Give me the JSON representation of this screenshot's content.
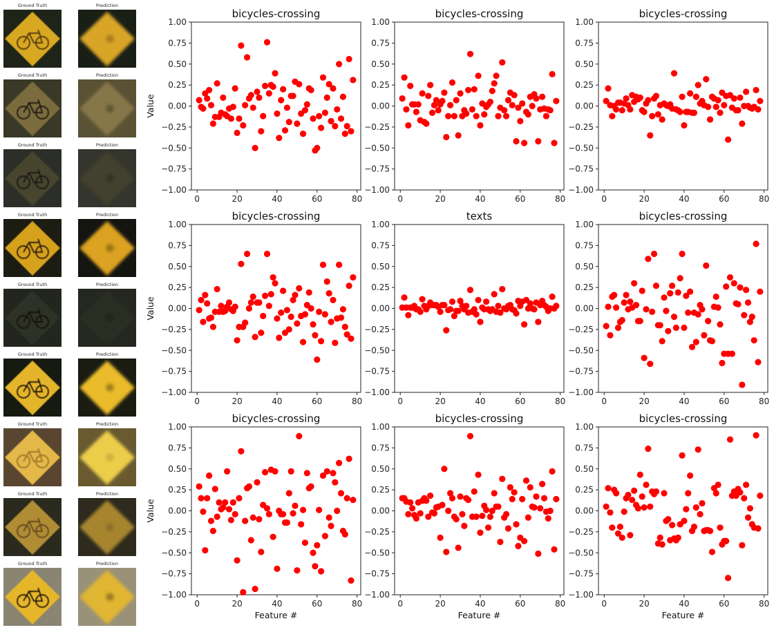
{
  "thumbnails": {
    "gt_label": "Ground Truth",
    "pred_label": "Prediction",
    "rows": [
      {
        "bg": "#1e2418",
        "sign": "#d9a822",
        "pred_bg": "#1a1f16",
        "pred_sign": "#d8a526",
        "symbol": "#5a3a10"
      },
      {
        "bg": "#3a3826",
        "sign": "#7a6c3c",
        "pred_bg": "#5a5234",
        "pred_sign": "#86774a",
        "symbol": "#1c1a12"
      },
      {
        "bg": "#2c2e28",
        "sign": "#46442e",
        "pred_bg": "#34352c",
        "pred_sign": "#423f2e",
        "symbol": "#1c1c16"
      },
      {
        "bg": "#1c1c12",
        "sign": "#d6a11c",
        "pred_bg": "#141410",
        "pred_sign": "#dca221",
        "symbol": "#2a1c08"
      },
      {
        "bg": "#22261e",
        "sign": "#2e3226",
        "pred_bg": "#252820",
        "pred_sign": "#2c2d24",
        "symbol": "#15170f"
      },
      {
        "bg": "#161a10",
        "sign": "#e4b42a",
        "pred_bg": "#1a1c12",
        "pred_sign": "#eabb2c",
        "symbol": "#1a1408"
      },
      {
        "bg": "#5a4630",
        "sign": "#e4b84a",
        "pred_bg": "#6a5a30",
        "pred_sign": "#eccd4a",
        "symbol": "#a47e2a"
      },
      {
        "bg": "#2a2a1e",
        "sign": "#b08c34",
        "pred_bg": "#2e2a1e",
        "pred_sign": "#a6852e",
        "symbol": "#6a4e20"
      },
      {
        "bg": "#8a8472",
        "sign": "#e6b62c",
        "pred_bg": "#9a9278",
        "pred_sign": "#e0b630",
        "symbol": "#1e1608"
      }
    ]
  },
  "chart_data": [
    {
      "type": "scatter",
      "title": "bicycles-crossing",
      "xlabel": "",
      "ylabel": "Value",
      "xlim": [
        -2.85,
        81.85
      ],
      "ylim": [
        -1,
        1
      ],
      "xticks": [
        0,
        20,
        40,
        60,
        80
      ],
      "yticks": [
        -1.0,
        -0.75,
        -0.5,
        -0.25,
        0.0,
        0.25,
        0.5,
        0.75,
        1.0
      ],
      "color": "#ff0000",
      "grid": false,
      "y": [
        0.07,
        -0.01,
        -0.03,
        0.15,
        0.09,
        0.19,
        0.01,
        -0.21,
        -0.13,
        0.27,
        -0.13,
        -0.08,
        0.1,
        -0.1,
        -0.12,
        -0.03,
        -0.15,
        -0.01,
        0.21,
        -0.32,
        -0.15,
        0.72,
        -0.23,
        0.01,
        0.58,
        0.09,
        0.13,
        -0.02,
        -0.5,
        0.17,
        0.1,
        -0.3,
        -0.12,
        0.24,
        0.76,
        0.15,
        0.25,
        0.23,
        0.39,
        -0.09,
        -0.38,
        0.07,
        0.2,
        -0.29,
        -0.02,
        -0.19,
        0.12,
        0.12,
        0.29,
        -0.21,
        0.26,
        -0.09,
        -0.33,
        -0.05,
        0.02,
        0.21,
        0.19,
        -0.15,
        -0.53,
        -0.5,
        -0.12,
        -0.26,
        0.34,
        -0.08,
        0.1,
        0.26,
        -0.18,
        0.21,
        -0.24,
        -0.04,
        0.5,
        -0.15,
        0.11,
        -0.33,
        -0.24,
        0.56,
        -0.3,
        0.31
      ]
    },
    {
      "type": "scatter",
      "title": "bicycles-crossing",
      "xlabel": "",
      "ylabel": "",
      "xlim": [
        -2.85,
        81.85
      ],
      "ylim": [
        -1,
        1
      ],
      "xticks": [
        0,
        20,
        40,
        60,
        80
      ],
      "yticks": [
        -1.0,
        -0.75,
        -0.5,
        -0.25,
        0.0,
        0.25,
        0.5,
        0.75,
        1.0
      ],
      "color": "#ff0000",
      "grid": false,
      "y": [
        0.09,
        0.34,
        -0.04,
        -0.23,
        0.24,
        0.02,
        0.02,
        -0.07,
        0.02,
        -0.17,
        0.15,
        -0.19,
        -0.21,
        0.12,
        0.25,
        -0.08,
        0.01,
        0.07,
        -0.05,
        0.02,
        0.06,
        0.16,
        -0.37,
        -0.12,
        0.01,
        0.28,
        -0.12,
        0.07,
        -0.35,
        0.15,
        -0.12,
        -0.05,
        -0.09,
        0.19,
        0.62,
        -0.04,
        0.2,
        -0.12,
        0.36,
        -0.23,
        0.03,
        -0.1,
        -0.01,
        0.02,
        0.05,
        0.18,
        0.27,
        0.36,
        -0.12,
        -0.02,
        0.52,
        -0.05,
        -0.12,
        0.07,
        0.16,
        0.01,
        0.13,
        -0.42,
        -0.02,
        -0.18,
        0.03,
        -0.44,
        -0.07,
        -0.1,
        0.11,
        0.0,
        0.14,
        0.09,
        -0.42,
        -0.04,
        0.11,
        -0.03,
        -0.12,
        -0.04,
        -0.05,
        0.38,
        -0.44,
        0.06
      ]
    },
    {
      "type": "scatter",
      "title": "bicycles-crossing",
      "xlabel": "",
      "ylabel": "",
      "xlim": [
        -2.85,
        81.85
      ],
      "ylim": [
        -1,
        1
      ],
      "xticks": [
        0,
        20,
        40,
        60,
        80
      ],
      "yticks": [
        -1.0,
        -0.75,
        -0.5,
        -0.25,
        0.0,
        0.25,
        0.5,
        0.75,
        1.0
      ],
      "color": "#ff0000",
      "grid": false,
      "y": [
        0.06,
        0.21,
        0.01,
        -0.12,
        0.0,
        -0.04,
        0.04,
        0.04,
        -0.05,
        0.03,
        0.09,
        0.01,
        -0.04,
        0.13,
        0.05,
        0.11,
        0.08,
        0.1,
        -0.05,
        -0.07,
        0.03,
        0.07,
        -0.35,
        -0.12,
        0.09,
        0.12,
        -0.1,
        0.01,
        -0.16,
        0.03,
        0.01,
        0.0,
        0.02,
        -0.03,
        0.39,
        -0.04,
        -0.05,
        -0.07,
        0.11,
        -0.23,
        -0.07,
        -0.07,
        0.15,
        -0.08,
        -0.08,
        0.11,
        0.25,
        0.03,
        0.06,
        0.01,
        0.32,
        -0.01,
        -0.16,
        0.11,
        0.09,
        -0.01,
        0.07,
        -0.08,
        0.16,
        0.01,
        0.12,
        -0.4,
        0.13,
        -0.02,
        0.09,
        -0.05,
        -0.05,
        0.1,
        -0.21,
        0.0,
        0.17,
        0.0,
        -0.02,
        -0.03,
        -0.01,
        0.19,
        -0.04,
        0.06
      ]
    },
    {
      "type": "scatter",
      "title": "bicycles-crossing",
      "xlabel": "",
      "ylabel": "Value",
      "xlim": [
        -2.85,
        81.85
      ],
      "ylim": [
        -1,
        1
      ],
      "xticks": [
        0,
        20,
        40,
        60,
        80
      ],
      "yticks": [
        -1.0,
        -0.75,
        -0.5,
        -0.25,
        0.0,
        0.25,
        0.5,
        0.75,
        1.0
      ],
      "color": "#ff0000",
      "grid": false,
      "y": [
        -0.02,
        0.1,
        -0.16,
        0.16,
        0.06,
        -0.12,
        -0.11,
        -0.22,
        -0.04,
        0.23,
        -0.04,
        0.03,
        -0.04,
        -0.03,
        0.02,
        0.07,
        -0.01,
        -0.03,
        0.02,
        -0.38,
        -0.22,
        0.53,
        -0.22,
        -0.17,
        0.65,
        0.0,
        0.07,
        0.14,
        -0.34,
        0.07,
        0.07,
        -0.29,
        -0.09,
        0.15,
        0.65,
        0.03,
        0.17,
        0.37,
        0.3,
        -0.12,
        -0.35,
        -0.05,
        0.21,
        -0.29,
        -0.02,
        -0.25,
        -0.1,
        0.1,
        0.16,
        -0.18,
        0.24,
        -0.09,
        -0.4,
        -0.07,
        0.04,
        0.19,
        0.0,
        -0.19,
        -0.32,
        -0.61,
        -0.04,
        -0.39,
        0.52,
        -0.07,
        0.32,
        0.18,
        -0.16,
        0.1,
        -0.41,
        -0.12,
        0.52,
        -0.11,
        -0.01,
        -0.22,
        -0.31,
        0.27,
        -0.36,
        0.37
      ]
    },
    {
      "type": "scatter",
      "title": "texts",
      "xlabel": "",
      "ylabel": "",
      "xlim": [
        -2.85,
        81.85
      ],
      "ylim": [
        -1,
        1
      ],
      "xticks": [
        0,
        20,
        40,
        60,
        80
      ],
      "yticks": [
        -1.0,
        -0.75,
        -0.5,
        -0.25,
        0.0,
        0.25,
        0.5,
        0.75,
        1.0
      ],
      "color": "#ff0000",
      "grid": false,
      "y": [
        0.01,
        0.13,
        0.01,
        -0.08,
        0.01,
        0.01,
        0.03,
        -0.01,
        -0.01,
        -0.04,
        0.11,
        0.03,
        -0.01,
        0.03,
        0.07,
        0.04,
        0.04,
        0.04,
        0.02,
        -0.04,
        0.04,
        0.04,
        -0.26,
        -0.02,
        -0.01,
        0.08,
        -0.09,
        -0.03,
        -0.03,
        0.09,
        0.03,
        -0.01,
        0.03,
        -0.05,
        0.22,
        -0.04,
        -0.01,
        -0.07,
        0.1,
        -0.16,
        0.01,
        -0.01,
        0.08,
        -0.01,
        -0.03,
        -0.01,
        0.17,
        -0.04,
        0.03,
        -0.05,
        0.23,
        0.0,
        -0.01,
        0.03,
        0.04,
        -0.01,
        -0.02,
        -0.06,
        0.09,
        0.03,
        0.08,
        -0.19,
        0.1,
        0.0,
        0.06,
        0.0,
        -0.01,
        0.07,
        -0.16,
        0.04,
        0.09,
        0.04,
        0.02,
        -0.03,
        0.0,
        0.14,
        0.0,
        0.03
      ]
    },
    {
      "type": "scatter",
      "title": "bicycles-crossing",
      "xlabel": "",
      "ylabel": "",
      "xlim": [
        -2.85,
        81.85
      ],
      "ylim": [
        -1,
        1
      ],
      "xticks": [
        0,
        20,
        40,
        60,
        80
      ],
      "yticks": [
        -1.0,
        -0.75,
        -0.5,
        -0.25,
        0.0,
        0.25,
        0.5,
        0.75,
        1.0
      ],
      "color": "#ff0000",
      "grid": false,
      "y": [
        -0.21,
        0.02,
        -0.32,
        0.14,
        0.16,
        0.01,
        -0.23,
        -0.16,
        -0.14,
        0.07,
        0.16,
        -0.01,
        0.08,
        0.01,
        0.3,
        0.04,
        -0.15,
        -0.15,
        0.21,
        -0.59,
        -0.01,
        0.59,
        -0.66,
        -0.04,
        0.65,
        0.27,
        -0.2,
        -0.2,
        -0.39,
        0.13,
        -0.03,
        -0.27,
        0.18,
        0.27,
        -0.1,
        -0.23,
        0.19,
        0.36,
        0.65,
        -0.23,
        0.15,
        -0.05,
        0.2,
        -0.46,
        -0.05,
        -0.4,
        -0.07,
        0.04,
        -0.01,
        -0.32,
        0.51,
        -0.15,
        -0.38,
        -0.39,
        0.02,
        0.14,
        0.01,
        -0.19,
        -0.65,
        -0.54,
        0.26,
        -0.54,
        0.37,
        -0.54,
        0.3,
        0.06,
        0.05,
        0.25,
        -0.91,
        -0.08,
        0.22,
        0.07,
        -0.16,
        -0.1,
        -0.38,
        0.77,
        -0.64,
        0.2
      ]
    },
    {
      "type": "scatter",
      "title": "bicycles-crossing",
      "xlabel": "Feature #",
      "ylabel": "Value",
      "xlim": [
        -2.85,
        81.85
      ],
      "ylim": [
        -1,
        1
      ],
      "xticks": [
        0,
        20,
        40,
        60,
        80
      ],
      "yticks": [
        -1.0,
        -0.75,
        -0.5,
        -0.25,
        0.0,
        0.25,
        0.5,
        0.75,
        1.0
      ],
      "color": "#ff0000",
      "grid": false,
      "y": [
        0.29,
        0.15,
        -0.01,
        -0.47,
        0.15,
        0.42,
        -0.12,
        -0.24,
        0.26,
        -0.07,
        0.1,
        0.02,
        0.04,
        0.1,
        0.47,
        0.02,
        -0.11,
        0.1,
        -0.04,
        -0.59,
        0.15,
        0.71,
        -0.97,
        -0.12,
        0.27,
        0.29,
        -0.35,
        -0.08,
        -0.93,
        0.34,
        -0.1,
        -0.49,
        0.07,
        0.46,
        0.03,
        -0.04,
        0.49,
        -0.31,
        0.47,
        -0.69,
        0.0,
        -0.04,
        -0.04,
        -0.14,
        -0.14,
        0.21,
        0.47,
        -0.03,
        0.06,
        -0.71,
        0.89,
        -0.16,
        0.01,
        -0.38,
        0.45,
        0.27,
        0.29,
        -0.5,
        -0.66,
        -0.41,
        0.01,
        -0.72,
        0.42,
        -0.3,
        0.47,
        -0.08,
        -0.18,
        0.45,
        0.34,
        0.0,
        0.57,
        0.21,
        -0.24,
        -0.28,
        0.15,
        0.62,
        -0.83,
        0.13
      ]
    },
    {
      "type": "scatter",
      "title": "bicycles-crossing",
      "xlabel": "Feature #",
      "ylabel": "",
      "xlim": [
        -2.85,
        81.85
      ],
      "ylim": [
        -1,
        1
      ],
      "xticks": [
        0,
        20,
        40,
        60,
        80
      ],
      "yticks": [
        -1.0,
        -0.75,
        -0.5,
        -0.25,
        0.0,
        0.25,
        0.5,
        0.75,
        1.0
      ],
      "color": "#ff0000",
      "grid": false,
      "y": [
        0.15,
        0.15,
        0.11,
        -0.04,
        0.1,
        0.03,
        -0.05,
        -0.09,
        0.1,
        -0.03,
        0.12,
        0.15,
        0.12,
        -0.07,
        0.18,
        -0.02,
        -0.03,
        0.04,
        0.05,
        -0.32,
        0.07,
        0.5,
        -0.49,
        0.0,
        0.21,
        0.15,
        -0.07,
        -0.1,
        -0.44,
        0.17,
        -0.04,
        -0.18,
        0.15,
        0.13,
        0.89,
        -0.07,
        0.23,
        -0.07,
        0.43,
        -0.26,
        -0.06,
        0.06,
        0.01,
        -0.2,
        -0.07,
        0.0,
        0.21,
        0.05,
        0.05,
        -0.37,
        0.38,
        -0.08,
        -0.04,
        -0.21,
        0.28,
        0.14,
        0.22,
        -0.16,
        -0.42,
        -0.32,
        0.14,
        -0.36,
        0.36,
        -0.08,
        0.28,
        0.05,
        0.04,
        0.17,
        -0.51,
        0.03,
        0.32,
        0.15,
        -0.01,
        -0.09,
        0.0,
        0.47,
        -0.46,
        0.14
      ]
    },
    {
      "type": "scatter",
      "title": "bicycles-crossing",
      "xlabel": "Feature #",
      "ylabel": "",
      "xlim": [
        -2.85,
        81.85
      ],
      "ylim": [
        -1,
        1
      ],
      "xticks": [
        0,
        20,
        40,
        60,
        80
      ],
      "yticks": [
        -1.0,
        -0.75,
        -0.5,
        -0.25,
        0.0,
        0.25,
        0.5,
        0.75,
        1.0
      ],
      "color": "#ff0000",
      "grid": false,
      "y": [
        0.05,
        0.27,
        -0.02,
        -0.2,
        0.25,
        0.21,
        -0.27,
        -0.19,
        -0.32,
        -0.01,
        0.15,
        0.19,
        -0.29,
        0.13,
        0.24,
        0.07,
        0.03,
        0.43,
        0.17,
        0.04,
        0.31,
        0.74,
        0.05,
        0.23,
        0.2,
        0.23,
        -0.39,
        -0.32,
        -0.4,
        0.21,
        -0.12,
        -0.1,
        -0.35,
        -0.17,
        -0.33,
        -0.35,
        -0.32,
        -0.16,
        0.66,
        -0.12,
        0.02,
        0.21,
        0.42,
        -0.24,
        -0.19,
        0.04,
        0.73,
        -0.04,
        0.09,
        -0.24,
        -0.23,
        -0.23,
        -0.24,
        -0.49,
        0.27,
        0.21,
        0.31,
        -0.2,
        -0.4,
        -0.36,
        -0.36,
        -0.8,
        0.85,
        0.18,
        0.23,
        0.18,
        0.26,
        0.22,
        -0.41,
        0.15,
        0.31,
        -0.08,
        0.03,
        -0.16,
        -0.2,
        0.9,
        -0.21,
        0.18
      ]
    }
  ]
}
